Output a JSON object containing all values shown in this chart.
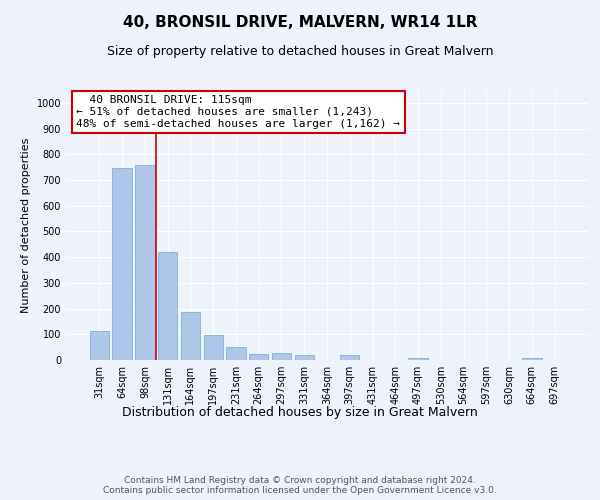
{
  "title": "40, BRONSIL DRIVE, MALVERN, WR14 1LR",
  "subtitle": "Size of property relative to detached houses in Great Malvern",
  "xlabel": "Distribution of detached houses by size in Great Malvern",
  "ylabel": "Number of detached properties",
  "footer_line1": "Contains HM Land Registry data © Crown copyright and database right 2024.",
  "footer_line2": "Contains public sector information licensed under the Open Government Licence v3.0.",
  "bar_labels": [
    "31sqm",
    "64sqm",
    "98sqm",
    "131sqm",
    "164sqm",
    "197sqm",
    "231sqm",
    "264sqm",
    "297sqm",
    "331sqm",
    "364sqm",
    "397sqm",
    "431sqm",
    "464sqm",
    "497sqm",
    "530sqm",
    "564sqm",
    "597sqm",
    "630sqm",
    "664sqm",
    "697sqm"
  ],
  "bar_values": [
    113,
    745,
    757,
    420,
    188,
    97,
    50,
    25,
    26,
    18,
    0,
    18,
    0,
    0,
    8,
    0,
    0,
    0,
    0,
    8,
    0
  ],
  "bar_color": "#aec6e8",
  "bar_edgecolor": "#6fa8d6",
  "vline_x": 2.5,
  "vline_color": "#cc0000",
  "annotation_line1": "  40 BRONSIL DRIVE: 115sqm",
  "annotation_line2": "← 51% of detached houses are smaller (1,243)",
  "annotation_line3": "48% of semi-detached houses are larger (1,162) →",
  "annotation_box_color": "#cc0000",
  "ylim": [
    0,
    1050
  ],
  "yticks": [
    0,
    100,
    200,
    300,
    400,
    500,
    600,
    700,
    800,
    900,
    1000
  ],
  "background_color": "#eef2fa",
  "plot_bg_color": "#eef2fa",
  "grid_color": "#ffffff",
  "title_fontsize": 11,
  "subtitle_fontsize": 9,
  "xlabel_fontsize": 9,
  "ylabel_fontsize": 8,
  "tick_fontsize": 7,
  "footer_fontsize": 6.5,
  "annotation_fontsize": 8
}
